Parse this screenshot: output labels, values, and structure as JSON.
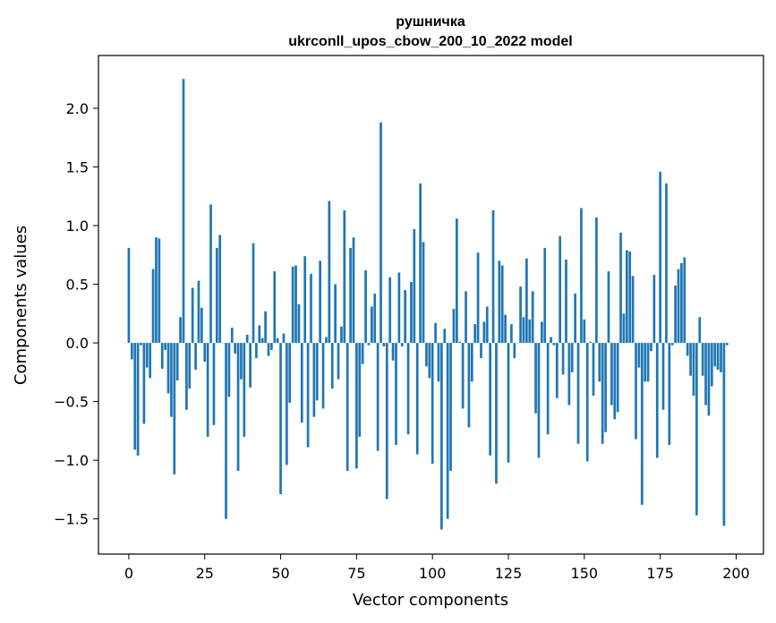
{
  "chart_data": {
    "type": "bar",
    "title": "рушничка",
    "subtitle": "ukrconll_upos_cbow_200_10_2022 model",
    "xlabel": "Vector components",
    "ylabel": "Components values",
    "xlim": [
      -10,
      209
    ],
    "ylim": [
      -1.8,
      2.45
    ],
    "xticks": [
      0,
      25,
      50,
      75,
      100,
      125,
      150,
      175,
      200
    ],
    "yticks": [
      -1.5,
      -1.0,
      -0.5,
      0.0,
      0.5,
      1.0,
      1.5,
      2.0
    ],
    "ytick_labels": [
      "−1.5",
      "−1.0",
      "−0.5",
      "0.0",
      "0.5",
      "1.0",
      "1.5",
      "2.0"
    ],
    "grid": false,
    "bar_color": "#1f77b4",
    "values": [
      0.81,
      -0.14,
      -0.91,
      -0.96,
      -0.02,
      -0.69,
      -0.21,
      -0.3,
      0.63,
      0.9,
      0.89,
      -0.22,
      -0.06,
      -0.43,
      -0.63,
      -1.12,
      -0.32,
      0.22,
      2.25,
      -0.57,
      -0.39,
      0.47,
      -0.23,
      0.53,
      0.3,
      -0.16,
      -0.8,
      1.18,
      -0.7,
      0.81,
      0.92,
      0.0,
      -1.5,
      -0.46,
      0.13,
      -0.09,
      -1.09,
      -0.31,
      -0.8,
      0.07,
      -0.38,
      0.85,
      -0.13,
      0.15,
      0.04,
      0.27,
      -0.11,
      -0.06,
      0.61,
      0.04,
      -1.29,
      0.08,
      -1.04,
      -0.51,
      0.65,
      0.66,
      0.33,
      -0.68,
      0.74,
      -0.89,
      0.59,
      -0.63,
      -0.49,
      0.7,
      -0.56,
      0.05,
      1.21,
      -0.39,
      0.5,
      -0.31,
      0.14,
      1.13,
      -1.09,
      0.81,
      0.9,
      -1.07,
      -0.8,
      -0.18,
      0.62,
      -0.02,
      0.31,
      0.42,
      -0.92,
      1.88,
      -0.03,
      -1.33,
      0.56,
      -0.15,
      -0.87,
      0.6,
      -0.03,
      0.45,
      -0.78,
      0.52,
      0.97,
      -0.95,
      1.36,
      0.86,
      -0.2,
      -0.3,
      -1.03,
      0.17,
      -0.33,
      -1.59,
      0.12,
      -1.5,
      -1.09,
      0.29,
      1.06,
      0.01,
      -0.56,
      0.44,
      -0.72,
      -0.33,
      0.16,
      0.77,
      -0.13,
      0.18,
      0.31,
      -0.96,
      1.13,
      -1.2,
      0.7,
      0.66,
      0.24,
      -1.02,
      0.16,
      -0.13,
      0.0,
      0.48,
      0.22,
      0.72,
      0.2,
      0.44,
      -0.6,
      -0.98,
      0.18,
      0.81,
      -0.78,
      0.05,
      -0.02,
      -0.47,
      0.91,
      -0.27,
      0.71,
      -0.53,
      -0.25,
      0.42,
      -0.86,
      1.15,
      0.2,
      -1.01,
      0.01,
      -0.45,
      1.07,
      -0.33,
      -0.86,
      -0.76,
      0.61,
      -0.53,
      -0.65,
      -0.59,
      0.94,
      0.25,
      0.79,
      0.78,
      0.57,
      -0.82,
      -0.21,
      -1.38,
      -0.33,
      -0.33,
      -0.07,
      0.58,
      -0.98,
      1.46,
      -0.57,
      1.36,
      -0.87,
      -0.02,
      0.49,
      0.63,
      0.68,
      0.73,
      -0.11,
      -0.28,
      -0.45,
      -1.47,
      0.22,
      -0.28,
      -0.53,
      -0.62,
      -0.37,
      -0.2,
      -0.23,
      -0.25,
      -1.56,
      -0.02
    ]
  }
}
